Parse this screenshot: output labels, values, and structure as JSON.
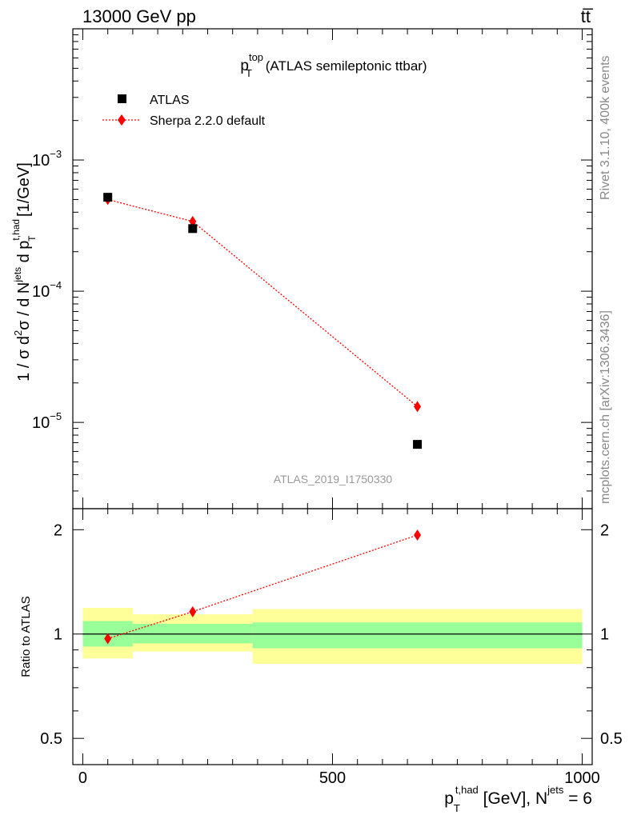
{
  "header": {
    "left_label": "13000 GeV pp",
    "right_label": "tt̅"
  },
  "side_labels": {
    "rivet": "Rivet 3.1.10,  400k events",
    "mcplots": "mcplots.cern.ch [arXiv:1306.3436]"
  },
  "colors": {
    "data_marker": "#000000",
    "mc_line": "#ff0000",
    "band_inner": "#99ff99",
    "band_outer": "#ffff99"
  },
  "chart_data": [
    {
      "type": "scatter",
      "panel": "main",
      "title": {
        "base": "p",
        "sup": "top",
        "sub": "T",
        "rest": " (ATLAS semileptonic ttbar)"
      },
      "ylabel": "1 / σ d²σ / d N^jets d p_T^t,had [1/GeV]",
      "yscale": "log",
      "ylim": [
        2.2e-06,
        0.01
      ],
      "xlim": [
        -20,
        1020
      ],
      "y_ticks": [
        {
          "value": 0.001,
          "base": "10",
          "exp": "−3"
        },
        {
          "value": 0.0001,
          "base": "10",
          "exp": "−4"
        },
        {
          "value": 1e-05,
          "base": "10",
          "exp": "−5"
        }
      ],
      "legend_position": "top-left",
      "watermark": "ATLAS_2019_I1750330",
      "series": [
        {
          "name": "ATLAS",
          "style": "square",
          "x": [
            50,
            220,
            670
          ],
          "y": [
            0.00052,
            0.0003,
            6.8e-06
          ]
        },
        {
          "name": "Sherpa 2.2.0 default",
          "style": "diamond-dotted-line",
          "x": [
            50,
            220,
            670
          ],
          "y": [
            0.0005,
            0.00034,
            1.32e-05
          ]
        }
      ]
    },
    {
      "type": "line",
      "panel": "ratio",
      "ylabel": "Ratio to ATLAS",
      "yscale": "log",
      "ylim": [
        0.42,
        2.3
      ],
      "xlim": [
        -20,
        1020
      ],
      "y_ticks": [
        {
          "value": 2,
          "label": "2"
        },
        {
          "value": 1,
          "label": "1"
        },
        {
          "value": 0.5,
          "label": "0.5"
        }
      ],
      "x_ticks": [
        {
          "value": 0,
          "label": "0"
        },
        {
          "value": 500,
          "label": "500"
        },
        {
          "value": 1000,
          "label": "1000"
        }
      ],
      "xlabel": {
        "base": "p",
        "sub": "T",
        "sup": "t,had",
        "rest": " [GeV], N",
        "sup2": "jets",
        "tail": " = 6"
      },
      "bands": [
        {
          "x0": 0,
          "x1": 100,
          "inner": [
            0.92,
            1.09
          ],
          "outer": [
            0.85,
            1.19
          ]
        },
        {
          "x0": 100,
          "x1": 340,
          "inner": [
            0.94,
            1.07
          ],
          "outer": [
            0.89,
            1.14
          ]
        },
        {
          "x0": 340,
          "x1": 1000,
          "inner": [
            0.91,
            1.08
          ],
          "outer": [
            0.82,
            1.18
          ]
        }
      ],
      "reference": 1,
      "series": [
        {
          "name": "Sherpa 2.2.0 default",
          "x": [
            50,
            220,
            670
          ],
          "y": [
            0.97,
            1.16,
            1.93
          ]
        }
      ]
    }
  ]
}
